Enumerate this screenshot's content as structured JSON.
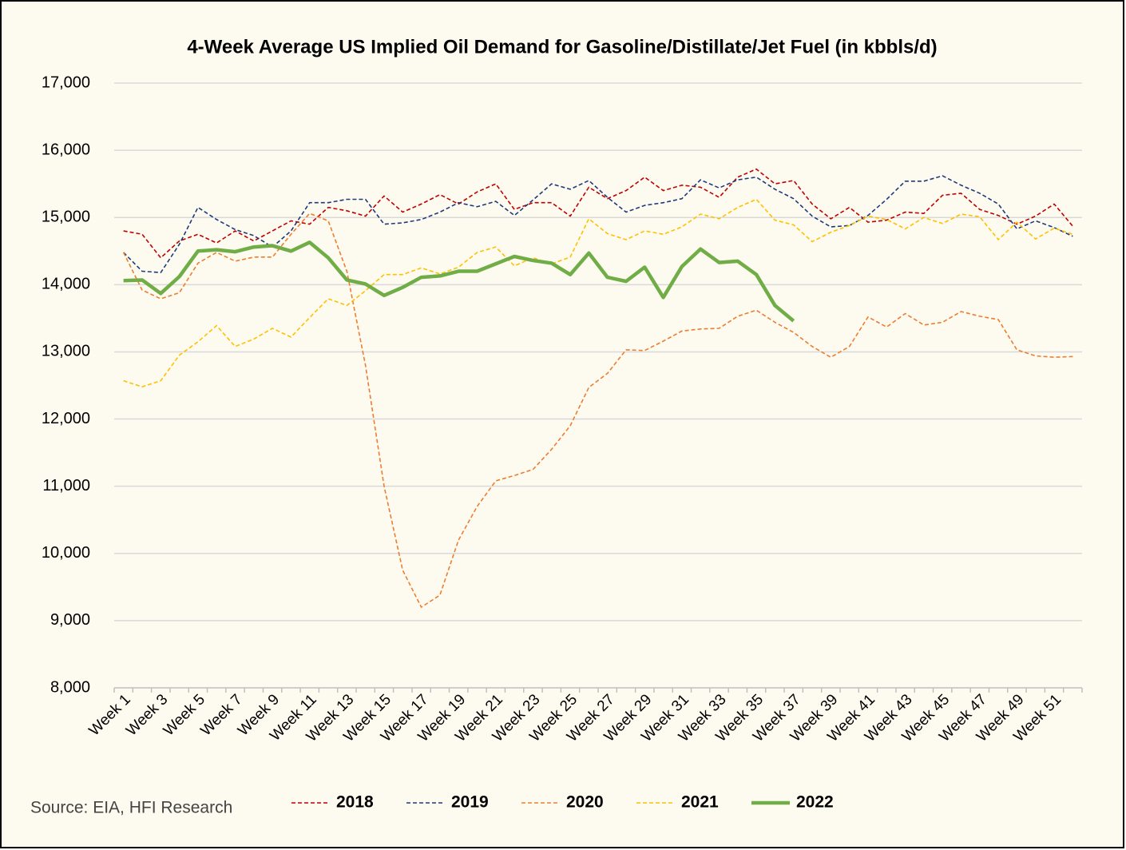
{
  "chart_data": {
    "type": "line",
    "title": "4-Week Average US Implied Oil Demand for Gasoline/Distillate/Jet Fuel (in kbbls/d)",
    "source": "Source: EIA, HFI Research",
    "categories": [
      "Week 1",
      null,
      "Week 3",
      null,
      "Week 5",
      null,
      "Week 7",
      null,
      "Week 9",
      null,
      "Week 11",
      null,
      "Week 13",
      null,
      "Week 15",
      null,
      "Week 17",
      null,
      "Week 19",
      null,
      "Week 21",
      null,
      "Week 23",
      null,
      "Week 25",
      null,
      "Week 27",
      null,
      "Week 29",
      null,
      "Week 31",
      null,
      "Week 33",
      null,
      "Week 35",
      null,
      "Week 37",
      null,
      "Week 39",
      null,
      "Week 41",
      null,
      "Week 43",
      null,
      "Week 45",
      null,
      "Week 47",
      null,
      "Week 49",
      null,
      "Week 51",
      null
    ],
    "ylim": [
      8000,
      17000
    ],
    "yticks": [
      {
        "value": 8000,
        "label": "8,000"
      },
      {
        "value": 9000,
        "label": "9,000"
      },
      {
        "value": 10000,
        "label": "10,000"
      },
      {
        "value": 11000,
        "label": "11,000"
      },
      {
        "value": 12000,
        "label": "12,000"
      },
      {
        "value": 13000,
        "label": "13,000"
      },
      {
        "value": 14000,
        "label": "14,000"
      },
      {
        "value": 15000,
        "label": "15,000"
      },
      {
        "value": 16000,
        "label": "16,000"
      },
      {
        "value": 17000,
        "label": "17,000"
      }
    ],
    "grid": true,
    "legend": "bottom",
    "series": [
      {
        "name": "2018",
        "color": "#c00000",
        "style": "dashed",
        "values": [
          14800,
          14750,
          14400,
          14650,
          14750,
          14620,
          14800,
          14650,
          14800,
          14950,
          14900,
          15150,
          15100,
          15020,
          15320,
          15080,
          15200,
          15340,
          15200,
          15380,
          15500,
          15120,
          15220,
          15220,
          15020,
          15450,
          15280,
          15400,
          15600,
          15400,
          15480,
          15450,
          15300,
          15600,
          15720,
          15500,
          15550,
          15200,
          14980,
          15150,
          14930,
          14960,
          15080,
          15060,
          15330,
          15360,
          15120,
          15030,
          14900,
          15020,
          15200,
          14870
        ]
      },
      {
        "name": "2019",
        "color": "#1f3a7a",
        "style": "dashed",
        "values": [
          14480,
          14200,
          14180,
          14600,
          15150,
          14970,
          14820,
          14730,
          14560,
          14800,
          15220,
          15220,
          15270,
          15270,
          14900,
          14920,
          14970,
          15080,
          15220,
          15160,
          15240,
          15030,
          15260,
          15500,
          15420,
          15550,
          15300,
          15080,
          15180,
          15220,
          15280,
          15560,
          15440,
          15560,
          15600,
          15420,
          15280,
          15020,
          14860,
          14880,
          15030,
          15270,
          15540,
          15540,
          15620,
          15480,
          15360,
          15200,
          14830,
          14950,
          14850,
          14720
        ]
      },
      {
        "name": "2020",
        "color": "#ed7d31",
        "style": "dashed",
        "values": [
          14480,
          13920,
          13790,
          13880,
          14320,
          14480,
          14350,
          14410,
          14410,
          14750,
          15060,
          14950,
          14200,
          12800,
          11000,
          9750,
          9200,
          9380,
          10200,
          10700,
          11080,
          11160,
          11250,
          11550,
          11900,
          12470,
          12680,
          13030,
          13020,
          13160,
          13310,
          13340,
          13350,
          13530,
          13620,
          13440,
          13290,
          13080,
          12920,
          13080,
          13520,
          13370,
          13570,
          13400,
          13440,
          13600,
          13530,
          13480,
          13030,
          12940,
          12920,
          12930
        ]
      },
      {
        "name": "2021",
        "color": "#ffc000",
        "style": "dashed",
        "values": [
          12570,
          12480,
          12570,
          12950,
          13150,
          13390,
          13080,
          13190,
          13350,
          13220,
          13510,
          13790,
          13690,
          13910,
          14150,
          14150,
          14250,
          14160,
          14260,
          14480,
          14560,
          14280,
          14400,
          14310,
          14410,
          14980,
          14760,
          14670,
          14800,
          14750,
          14860,
          15050,
          14980,
          15150,
          15270,
          14960,
          14890,
          14640,
          14780,
          14880,
          15020,
          14970,
          14830,
          15000,
          14910,
          15050,
          15010,
          14670,
          14930,
          14680,
          14840,
          14750
        ]
      },
      {
        "name": "2022",
        "color": "#70ad47",
        "style": "solid",
        "values": [
          14060,
          14070,
          13870,
          14120,
          14500,
          14520,
          14490,
          14560,
          14580,
          14500,
          14630,
          14400,
          14070,
          14010,
          13840,
          13960,
          14110,
          14130,
          14200,
          14200,
          14310,
          14420,
          14360,
          14320,
          14150,
          14470,
          14110,
          14050,
          14260,
          13810,
          14270,
          14530,
          14330,
          14350,
          14150,
          13690,
          13460,
          null,
          null,
          null,
          null,
          null,
          null,
          null,
          null,
          null,
          null,
          null,
          null,
          null,
          null,
          null
        ]
      }
    ]
  }
}
